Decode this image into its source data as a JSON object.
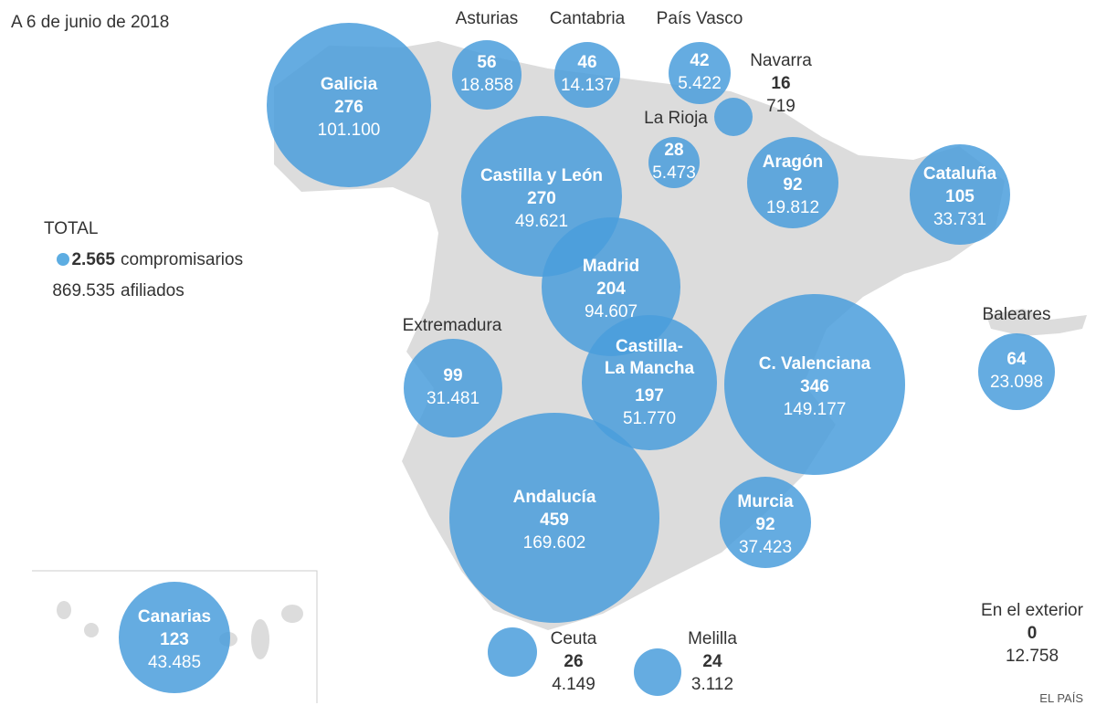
{
  "date_label": "A 6 de junio de 2018",
  "legend": {
    "title": "TOTAL",
    "compromisarios_value": "2.565",
    "compromisarios_label": "compromisarios",
    "afiliados_value": "869.535",
    "afiliados_label": "afiliados"
  },
  "exterior": {
    "name": "En el exterior",
    "compromisarios": "0",
    "afiliados": "12.758"
  },
  "credit": "EL PAÍS",
  "colors": {
    "bubble": "#4a9edc",
    "map": "#dcdcdc",
    "text_dark": "#333333"
  },
  "chart_data": {
    "type": "bubble-map",
    "title": "A 6 de junio de 2018",
    "size_metric": "compromisarios",
    "regions": [
      {
        "name": "Galicia",
        "compromisarios": 276,
        "afiliados": "101.100"
      },
      {
        "name": "Asturias",
        "compromisarios": 56,
        "afiliados": "18.858"
      },
      {
        "name": "Cantabria",
        "compromisarios": 46,
        "afiliados": "14.137"
      },
      {
        "name": "País Vasco",
        "compromisarios": 42,
        "afiliados": "5.422"
      },
      {
        "name": "Navarra",
        "compromisarios": 16,
        "afiliados": "719"
      },
      {
        "name": "La Rioja",
        "compromisarios": 28,
        "afiliados": "5.473"
      },
      {
        "name": "Castilla y León",
        "compromisarios": 270,
        "afiliados": "49.621"
      },
      {
        "name": "Aragón",
        "compromisarios": 92,
        "afiliados": "19.812"
      },
      {
        "name": "Cataluña",
        "compromisarios": 105,
        "afiliados": "33.731"
      },
      {
        "name": "Madrid",
        "compromisarios": 204,
        "afiliados": "94.607"
      },
      {
        "name": "Extremadura",
        "compromisarios": 99,
        "afiliados": "31.481"
      },
      {
        "name": "Castilla-La Mancha",
        "compromisarios": 197,
        "afiliados": "51.770"
      },
      {
        "name": "C. Valenciana",
        "compromisarios": 346,
        "afiliados": "149.177"
      },
      {
        "name": "Baleares",
        "compromisarios": 64,
        "afiliados": "23.098"
      },
      {
        "name": "Andalucía",
        "compromisarios": 459,
        "afiliados": "169.602"
      },
      {
        "name": "Murcia",
        "compromisarios": 92,
        "afiliados": "37.423"
      },
      {
        "name": "Canarias",
        "compromisarios": 123,
        "afiliados": "43.485"
      },
      {
        "name": "Ceuta",
        "compromisarios": 26,
        "afiliados": "4.149"
      },
      {
        "name": "Melilla",
        "compromisarios": 24,
        "afiliados": "3.112"
      }
    ]
  }
}
